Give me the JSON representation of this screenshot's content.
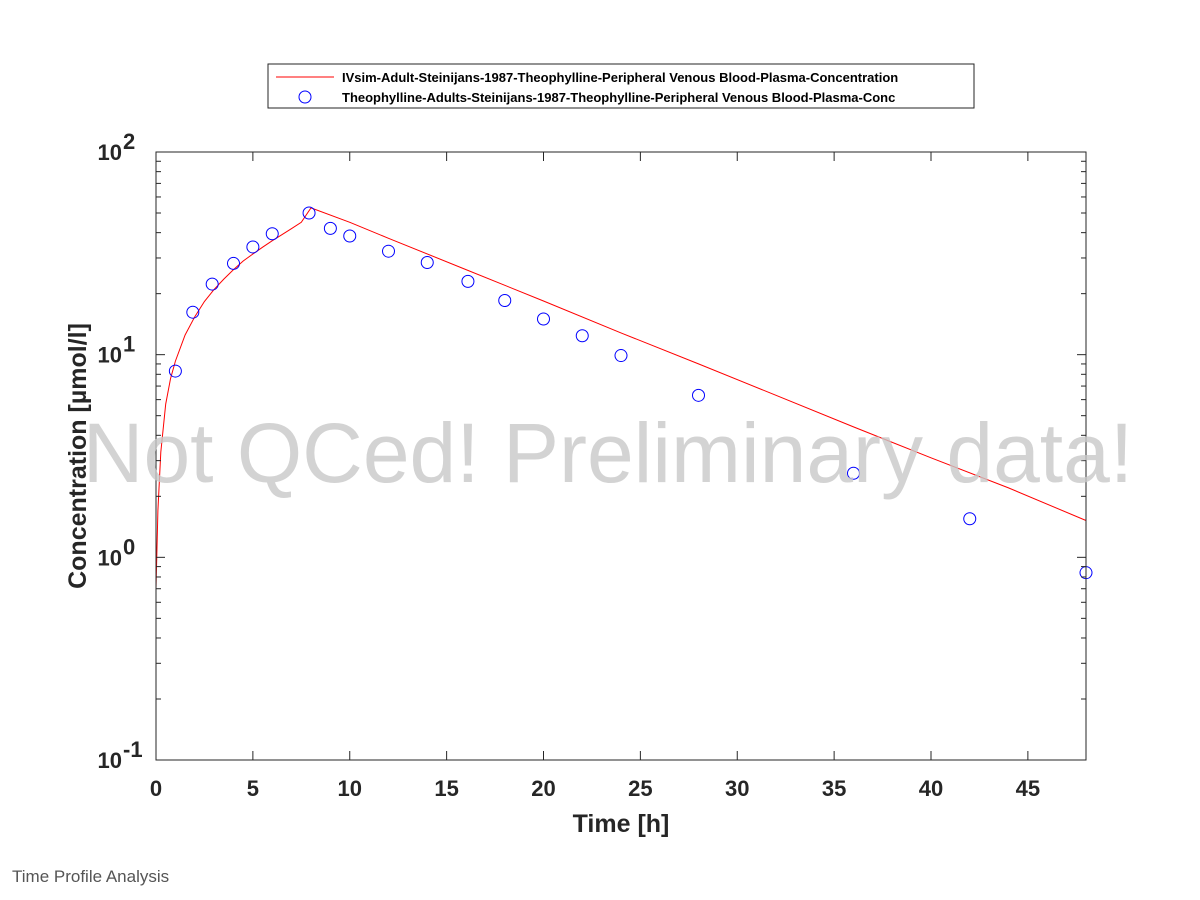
{
  "chart_data": {
    "type": "line",
    "xlabel": "Time [h]",
    "ylabel": "Concentration [µmol/l]",
    "xlim": [
      0,
      48
    ],
    "ylim": [
      0.1,
      100
    ],
    "yscale": "log",
    "grid": false,
    "legend_placement": "top-center",
    "x_ticks": [
      "0",
      "5",
      "10",
      "15",
      "20",
      "25",
      "30",
      "35",
      "40",
      "45"
    ],
    "y_ticks": [
      {
        "base": "10",
        "exp": "-1"
      },
      {
        "base": "10",
        "exp": "0"
      },
      {
        "base": "10",
        "exp": "1"
      },
      {
        "base": "10",
        "exp": "2"
      }
    ],
    "watermark": "Not QCed! Preliminary data!",
    "series": [
      {
        "name": "IVsim-Adult-Steinijans-1987-Theophylline-Peripheral Venous Blood-Plasma-Concentration",
        "kind": "line",
        "color": "#ff0000",
        "x": [
          0,
          0.1,
          0.25,
          0.5,
          0.75,
          1,
          1.5,
          2,
          2.5,
          3,
          3.5,
          4,
          4.5,
          5,
          5.5,
          6,
          6.5,
          7,
          7.5,
          8,
          10,
          12,
          16,
          20,
          24,
          28,
          32,
          36,
          40,
          44,
          48
        ],
        "y": [
          0.7,
          1.7,
          3.3,
          5.7,
          7.6,
          9.3,
          12.5,
          15.4,
          18.3,
          21.0,
          23.6,
          26.3,
          29.0,
          31.4,
          33.9,
          36.5,
          39.1,
          41.9,
          45.0,
          53.0,
          45.0,
          37.5,
          26.3,
          18.4,
          12.8,
          9.0,
          6.3,
          4.4,
          3.1,
          2.2,
          1.52
        ]
      },
      {
        "name": "Theophylline-Adults-Steinijans-1987-Theophylline-Peripheral Venous Blood-Plasma-Conc",
        "kind": "scatter",
        "color": "#0000ff",
        "x": [
          1,
          1.9,
          2.9,
          4,
          5,
          6,
          7.9,
          9,
          10,
          12,
          14,
          16.1,
          18,
          20,
          22,
          24,
          28,
          36,
          42,
          48
        ],
        "y": [
          8.3,
          16.2,
          22.3,
          28.2,
          34.0,
          39.5,
          50.0,
          42.0,
          38.5,
          32.4,
          28.5,
          23.0,
          18.5,
          15.0,
          12.4,
          9.9,
          6.3,
          2.6,
          1.55,
          0.84
        ]
      }
    ]
  },
  "footer": {
    "text": "Time Profile Analysis"
  }
}
